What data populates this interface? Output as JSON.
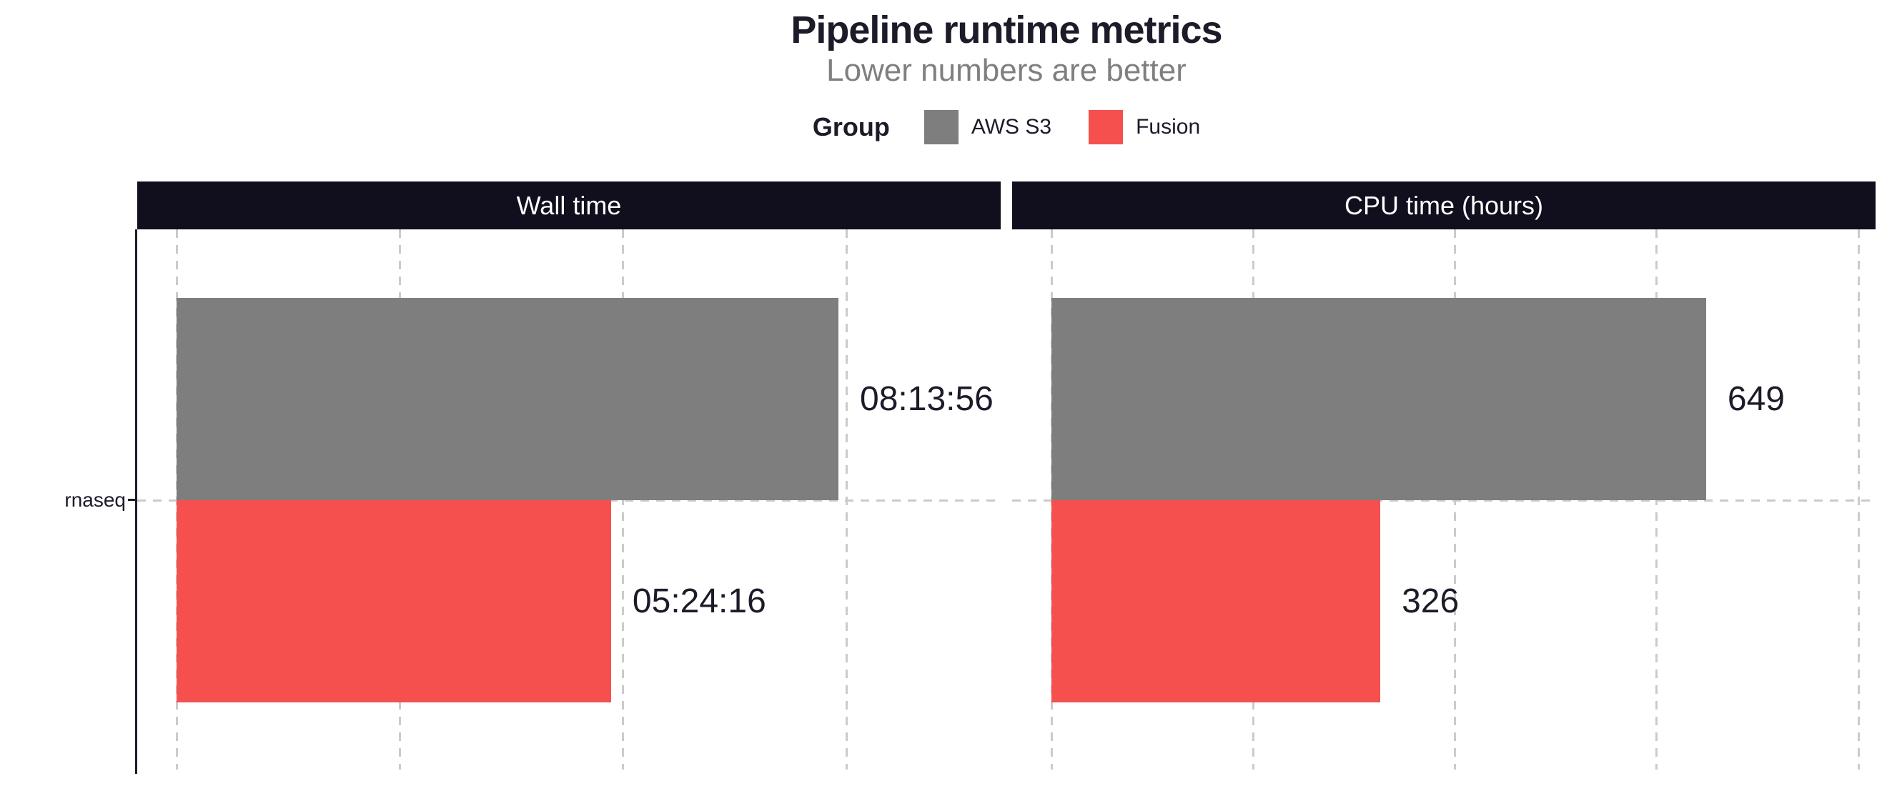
{
  "chart_data": {
    "type": "bar",
    "orientation": "horizontal",
    "title": "Pipeline runtime metrics",
    "subtitle": "Lower numbers are better",
    "legend": {
      "title": "Group",
      "position": "top",
      "entries": [
        {
          "label": "AWS S3",
          "color": "#7e7e7e"
        },
        {
          "label": "Fusion",
          "color": "#f5504e"
        }
      ]
    },
    "categories": [
      "rnaseq"
    ],
    "facets": [
      {
        "title": "Wall time",
        "unit": "seconds",
        "xlim": [
          0,
          36900
        ],
        "grid_interval": 10000,
        "grid_style": "dashed",
        "bars": [
          {
            "group": "AWS S3",
            "category": "rnaseq",
            "value": 29636,
            "label": "08:13:56"
          },
          {
            "group": "Fusion",
            "category": "rnaseq",
            "value": 19456,
            "label": "05:24:16"
          }
        ]
      },
      {
        "title": "CPU time (hours)",
        "unit": "hours",
        "xlim": [
          0,
          817
        ],
        "grid_interval": 200,
        "grid_style": "dashed",
        "bars": [
          {
            "group": "AWS S3",
            "category": "rnaseq",
            "value": 649,
            "label": "649"
          },
          {
            "group": "Fusion",
            "category": "rnaseq",
            "value": 326,
            "label": "326"
          }
        ]
      }
    ],
    "colors": {
      "strip_background": "#110e1d",
      "strip_text": "#ffffff",
      "text": "#1d1a29",
      "subtitle_text": "#7f7f7f",
      "gridline": "#cbcbcb",
      "axis": "#1d1a29",
      "background": "#ffffff"
    }
  }
}
